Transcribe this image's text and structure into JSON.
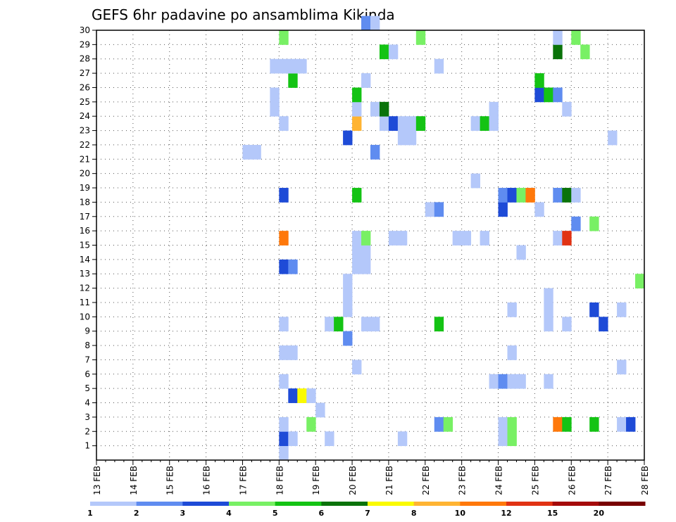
{
  "chart_data": {
    "type": "heatmap",
    "title": "GEFS 6hr padavine po ansamblima Kikinda",
    "xlabel": "",
    "ylabel": "",
    "x_ticks": [
      "13 FEB",
      "14 FEB",
      "15 FEB",
      "16 FEB",
      "17 FEB",
      "18 FEB",
      "19 FEB",
      "20 FEB",
      "21 FEB",
      "22 FEB",
      "23 FEB",
      "24 FEB",
      "25 FEB",
      "26 FEB",
      "27 FEB",
      "28 FEB"
    ],
    "y_ticks": [
      "1",
      "2",
      "3",
      "4",
      "5",
      "6",
      "7",
      "8",
      "9",
      "10",
      "11",
      "12",
      "13",
      "14",
      "15",
      "16",
      "17",
      "18",
      "19",
      "20",
      "21",
      "22",
      "23",
      "24",
      "25",
      "26",
      "27",
      "28",
      "29",
      "30"
    ],
    "xlim": [
      0,
      60
    ],
    "ylim": [
      0,
      30
    ],
    "grid": true,
    "legend_position": "bottom",
    "legend_values": [
      "1",
      "2",
      "3",
      "4",
      "5",
      "6",
      "7",
      "8",
      "10",
      "12",
      "15",
      "20"
    ],
    "legend_colors": [
      "#b4c8fa",
      "#5f8cf0",
      "#1e4bd7",
      "#78f064",
      "#14c314",
      "#0a730a",
      "#fafa00",
      "#ffb432",
      "#ff780a",
      "#e13214",
      "#a50a0a",
      "#780000"
    ],
    "cells": [
      [
        0,
        20,
        1
      ],
      [
        1,
        20,
        3
      ],
      [
        1,
        21,
        1
      ],
      [
        1,
        25,
        1
      ],
      [
        1,
        33,
        1
      ],
      [
        1,
        44,
        1
      ],
      [
        1,
        45,
        4
      ],
      [
        2,
        20,
        1
      ],
      [
        2,
        23,
        4
      ],
      [
        2,
        37,
        2
      ],
      [
        2,
        38,
        4
      ],
      [
        2,
        44,
        1
      ],
      [
        2,
        45,
        4
      ],
      [
        2,
        50,
        9
      ],
      [
        2,
        51,
        5
      ],
      [
        2,
        54,
        5
      ],
      [
        2,
        57,
        1
      ],
      [
        2,
        58,
        3
      ],
      [
        3,
        24,
        1
      ],
      [
        4,
        21,
        3
      ],
      [
        4,
        22,
        7
      ],
      [
        4,
        23,
        1
      ],
      [
        5,
        20,
        1
      ],
      [
        5,
        43,
        1
      ],
      [
        5,
        44,
        2
      ],
      [
        5,
        45,
        1
      ],
      [
        5,
        46,
        1
      ],
      [
        5,
        49,
        1
      ],
      [
        6,
        28,
        1
      ],
      [
        6,
        57,
        1
      ],
      [
        7,
        20,
        1
      ],
      [
        7,
        21,
        1
      ],
      [
        7,
        45,
        1
      ],
      [
        8,
        27,
        2
      ],
      [
        9,
        20,
        1
      ],
      [
        9,
        25,
        1
      ],
      [
        9,
        26,
        5
      ],
      [
        9,
        29,
        1
      ],
      [
        9,
        30,
        1
      ],
      [
        9,
        37,
        5
      ],
      [
        9,
        49,
        1
      ],
      [
        9,
        51,
        1
      ],
      [
        9,
        55,
        3
      ],
      [
        10,
        27,
        1
      ],
      [
        10,
        45,
        1
      ],
      [
        10,
        49,
        1
      ],
      [
        10,
        54,
        3
      ],
      [
        10,
        57,
        1
      ],
      [
        11,
        27,
        1
      ],
      [
        11,
        49,
        1
      ],
      [
        12,
        27,
        1
      ],
      [
        12,
        59,
        4
      ],
      [
        13,
        20,
        3
      ],
      [
        13,
        21,
        2
      ],
      [
        13,
        28,
        1
      ],
      [
        13,
        29,
        1
      ],
      [
        14,
        28,
        1
      ],
      [
        14,
        29,
        1
      ],
      [
        14,
        46,
        1
      ],
      [
        15,
        20,
        9
      ],
      [
        15,
        28,
        1
      ],
      [
        15,
        29,
        4
      ],
      [
        15,
        32,
        1
      ],
      [
        15,
        33,
        1
      ],
      [
        15,
        39,
        1
      ],
      [
        15,
        40,
        1
      ],
      [
        15,
        42,
        1
      ],
      [
        15,
        50,
        1
      ],
      [
        15,
        51,
        10
      ],
      [
        16,
        52,
        2
      ],
      [
        16,
        54,
        4
      ],
      [
        17,
        36,
        1
      ],
      [
        17,
        37,
        2
      ],
      [
        17,
        44,
        3
      ],
      [
        17,
        48,
        1
      ],
      [
        18,
        20,
        3
      ],
      [
        18,
        28,
        5
      ],
      [
        18,
        44,
        2
      ],
      [
        18,
        45,
        3
      ],
      [
        18,
        46,
        4
      ],
      [
        18,
        47,
        9
      ],
      [
        18,
        50,
        2
      ],
      [
        18,
        51,
        6
      ],
      [
        18,
        52,
        1
      ],
      [
        19,
        41,
        1
      ],
      [
        21,
        16,
        1
      ],
      [
        21,
        17,
        1
      ],
      [
        21,
        30,
        2
      ],
      [
        22,
        27,
        3
      ],
      [
        22,
        33,
        1
      ],
      [
        22,
        34,
        1
      ],
      [
        22,
        56,
        1
      ],
      [
        23,
        28,
        8
      ],
      [
        23,
        31,
        1
      ],
      [
        23,
        32,
        3
      ],
      [
        23,
        33,
        1
      ],
      [
        23,
        34,
        1
      ],
      [
        23,
        35,
        5
      ],
      [
        23,
        41,
        1
      ],
      [
        23,
        42,
        5
      ],
      [
        23,
        43,
        1
      ],
      [
        23,
        20,
        1
      ],
      [
        24,
        19,
        1
      ],
      [
        24,
        28,
        1
      ],
      [
        24,
        30,
        1
      ],
      [
        24,
        31,
        6
      ],
      [
        24,
        43,
        1
      ],
      [
        24,
        51,
        1
      ],
      [
        25,
        19,
        1
      ],
      [
        25,
        28,
        5
      ],
      [
        25,
        48,
        3
      ],
      [
        25,
        49,
        5
      ],
      [
        25,
        50,
        2
      ],
      [
        26,
        21,
        5
      ],
      [
        26,
        29,
        1
      ],
      [
        26,
        48,
        5
      ],
      [
        27,
        19,
        1
      ],
      [
        27,
        20,
        1
      ],
      [
        27,
        21,
        1
      ],
      [
        27,
        22,
        1
      ],
      [
        27,
        37,
        1
      ],
      [
        28,
        31,
        5
      ],
      [
        28,
        32,
        1
      ],
      [
        28,
        50,
        6
      ],
      [
        28,
        53,
        4
      ],
      [
        29,
        20,
        4
      ],
      [
        29,
        35,
        4
      ],
      [
        29,
        50,
        1
      ],
      [
        29,
        52,
        4
      ],
      [
        30,
        29,
        2
      ],
      [
        30,
        30,
        1
      ]
    ]
  }
}
